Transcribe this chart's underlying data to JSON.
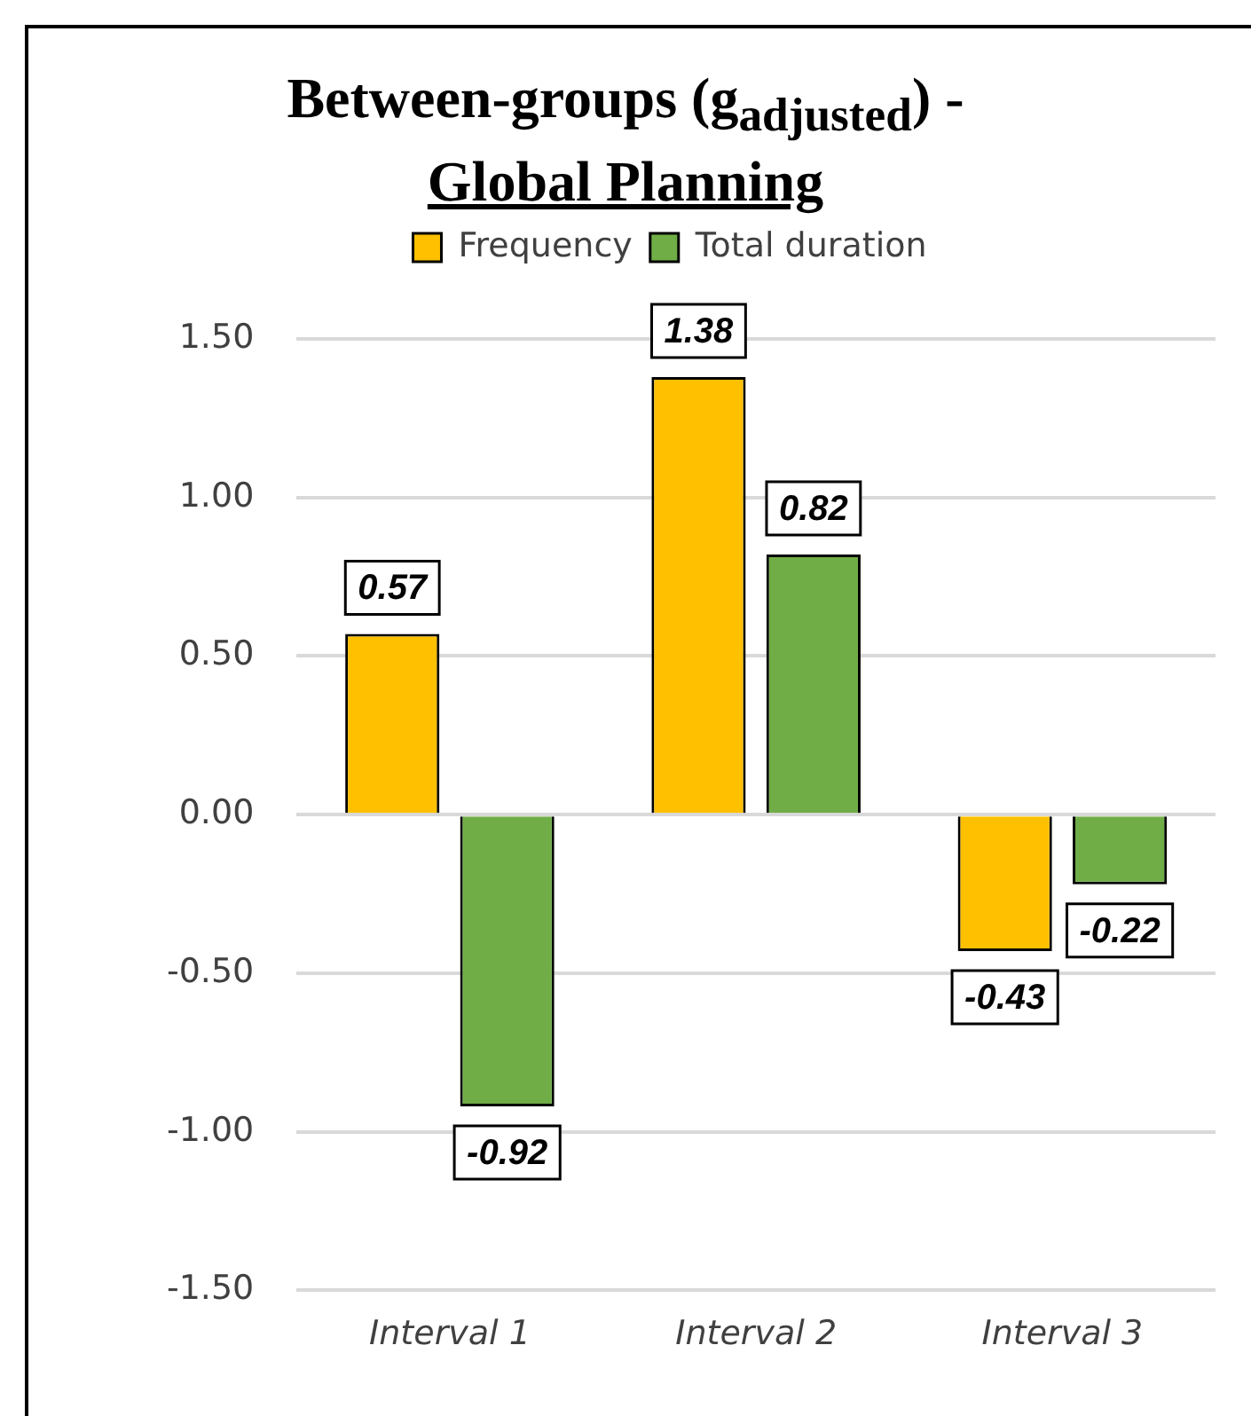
{
  "chart_data": {
    "type": "bar",
    "title": "Between-groups (g$_{adjusted}$) -",
    "subtitle": "Global Planning",
    "categories": [
      "Interval 1",
      "Interval 2",
      "Interval 3"
    ],
    "series": [
      {
        "name": "Frequency",
        "color": "#ffc000",
        "values": [
          0.57,
          1.38,
          -0.43
        ]
      },
      {
        "name": "Total duration",
        "color": "#70ad47",
        "values": [
          -0.92,
          0.82,
          -0.22
        ]
      }
    ],
    "ylim": [
      -1.5,
      1.5
    ],
    "yticks": [
      {
        "value": -1.5,
        "label": "-1.50"
      },
      {
        "value": -1,
        "label": "-1.00"
      },
      {
        "value": -0.5,
        "label": "-0.50"
      },
      {
        "value": 0,
        "label": "0.00"
      },
      {
        "value": 0.5,
        "label": "0.50"
      },
      {
        "value": 1,
        "label": "1.00"
      },
      {
        "value": 1.5,
        "label": "1.50"
      }
    ],
    "grid": "y",
    "legend": "top",
    "data_labels": true
  }
}
